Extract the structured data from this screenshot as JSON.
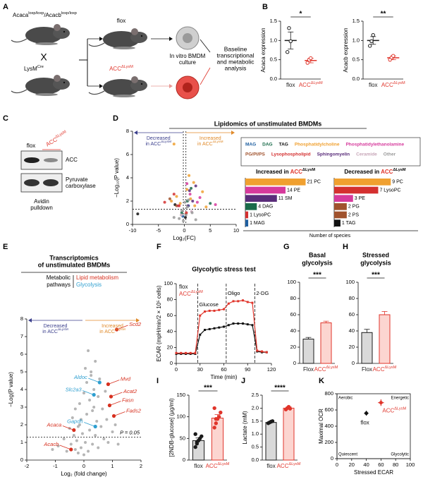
{
  "panel_labels": [
    "A",
    "B",
    "C",
    "D",
    "E",
    "F",
    "G",
    "H",
    "I",
    "J",
    "K"
  ],
  "diagram": {
    "genotype_top": [
      {
        "text": "Acaca",
        "sup": "loxp/loxp"
      },
      {
        "text": "/Acacb",
        "sup": "loxp/loxp"
      }
    ],
    "cross": "X",
    "genotype_bottom": {
      "text": "LysM",
      "sup": "Cre"
    },
    "flox": "flox",
    "knockout": {
      "text": "ACC",
      "sup": "ΔLysM"
    },
    "culture": [
      "In vitro BMDM",
      "culture"
    ],
    "analysis": [
      "Baseline",
      "transcriptional",
      "and metabolic",
      "analysis"
    ]
  },
  "blot": {
    "lanes": [
      "flox",
      {
        "text": "ACC",
        "sup": "ΔLysM"
      }
    ],
    "bands": [
      "ACC",
      [
        "Pyruvate",
        "carboxylase"
      ]
    ],
    "footer": [
      "Avidin",
      "pulldown"
    ]
  },
  "chart_data": [
    {
      "type": "dotbar",
      "y_label": "Acaca expression",
      "categories": [
        "flox",
        {
          "text": "ACC",
          "sup": "ΔLysM"
        }
      ],
      "colors": [
        "#1a1a1a",
        "#e0352b"
      ],
      "values": [
        1.0,
        0.48
      ],
      "errors": [
        0.22,
        0.06
      ],
      "points": [
        [
          0.7,
          1.32,
          0.98
        ],
        [
          0.42,
          0.5,
          0.54
        ]
      ],
      "ylim": [
        0,
        1.5
      ],
      "yticks": [
        {
          "value": 0,
          "label": "0.0"
        },
        {
          "value": 0.5,
          "label": "0.5"
        },
        {
          "value": 1,
          "label": "1.0"
        },
        {
          "value": 1.5,
          "label": "1.5"
        }
      ],
      "significance": "*"
    },
    {
      "type": "dotbar",
      "y_label": "Acacb expression",
      "categories": [
        "flox",
        {
          "text": "ACC",
          "sup": "ΔLysM"
        }
      ],
      "colors": [
        "#1a1a1a",
        "#e0352b"
      ],
      "values": [
        1.0,
        0.55
      ],
      "errors": [
        0.1,
        0.05
      ],
      "points": [
        [
          0.86,
          0.98,
          1.14
        ],
        [
          0.5,
          0.56,
          0.6
        ]
      ],
      "ylim": [
        0,
        1.5
      ],
      "yticks": [
        {
          "value": 0,
          "label": "0.0"
        },
        {
          "value": 0.5,
          "label": "0.5"
        },
        {
          "value": 1,
          "label": "1.0"
        },
        {
          "value": 1.5,
          "label": "1.5"
        }
      ],
      "significance": "**"
    },
    {
      "type": "scatter",
      "title": "Lipidomics of unstimulated BMDMs",
      "x_label": "Log₂(FC)",
      "y_label": "−Log₁₀(P value)",
      "decreased": [
        "Decreased",
        {
          "text": "in ACC",
          "sup": "ΔLysM"
        }
      ],
      "increased": [
        "Increased",
        {
          "text": "in ACC",
          "sup": "ΔLysM"
        }
      ],
      "xlim": [
        -10,
        10
      ],
      "xticks": [
        -10,
        -5,
        0,
        5,
        10
      ],
      "ylim": [
        0,
        8
      ],
      "yticks": [
        0,
        2,
        4,
        6,
        8
      ],
      "hline": 1.3,
      "vlines": [
        -0.2,
        0.3
      ],
      "legend": true,
      "series": [
        {
          "name": "MAG",
          "color": "#1f5fa0",
          "x": [
            0.8,
            -0.3
          ],
          "y": [
            1.6,
            0.7
          ]
        },
        {
          "name": "DAG",
          "color": "#1a6b4a",
          "x": [
            1.3,
            0.6,
            -0.5,
            5.0
          ],
          "y": [
            3.1,
            2.0,
            1.0,
            1.8
          ]
        },
        {
          "name": "TAG",
          "color": "#111111",
          "x": [
            -9,
            -1.8,
            0.2
          ],
          "y": [
            0.9,
            1.7,
            0.6
          ]
        },
        {
          "name": "Phosphatidylcholine",
          "color": "#f0a030",
          "x": [
            -1.5,
            -0.8,
            0.5,
            1.2,
            2.0,
            3.5,
            -2.5,
            0.9,
            1.8,
            4.2,
            -2.0
          ],
          "y": [
            2.4,
            1.8,
            3.0,
            2.2,
            1.6,
            2.8,
            2.0,
            4.2,
            3.6,
            1.5,
            6.9
          ]
        },
        {
          "name": "Phosphatidylethanolamine",
          "color": "#d63a9c",
          "x": [
            0.5,
            1.1,
            2.5,
            -1.2,
            3.0,
            6.0
          ],
          "y": [
            3.5,
            2.6,
            1.9,
            1.6,
            2.3,
            1.7
          ]
        },
        {
          "name": "PG/PI/PS",
          "color": "#a0522d",
          "x": [
            -2.8,
            -1.5,
            0.3
          ],
          "y": [
            2.2,
            1.6,
            0.9
          ]
        },
        {
          "name": "Lysophospholipid",
          "color": "#d43030",
          "x": [
            -3.8,
            -2.0,
            -1.0,
            0.4
          ],
          "y": [
            1.9,
            2.6,
            1.6,
            1.0
          ]
        },
        {
          "name": "Sphingomyelin",
          "color": "#5a2d7a",
          "x": [
            1.0,
            1.6,
            2.2,
            0.7
          ],
          "y": [
            2.9,
            2.0,
            3.3,
            1.6
          ]
        },
        {
          "name": "Ceramide",
          "color": "#c7a6b8",
          "x": [
            -0.6,
            1.4
          ],
          "y": [
            0.8,
            1.1
          ]
        },
        {
          "name": "Other",
          "color": "#9a9a9a",
          "x": [
            -1,
            -0.5,
            0.3,
            0.8,
            1.5,
            -2,
            0.1,
            2.2,
            -0.2,
            0.6
          ],
          "y": [
            0.5,
            1.2,
            0.8,
            2.1,
            1.0,
            0.6,
            1.9,
            0.4,
            0.3,
            1.5
          ]
        }
      ]
    },
    {
      "type": "hbar",
      "title": {
        "text": "Increased in ",
        "accent": "ACC",
        "sup": "ΔLysM"
      },
      "values": [
        21,
        14,
        11,
        4,
        1,
        1
      ],
      "value_labels": [
        "21 PC",
        "14 PE",
        "11 SM",
        "4 DAG",
        "1 LysoPC",
        "1 MAG"
      ],
      "colors": [
        "#f0a030",
        "#d63a9c",
        "#5a2d7a",
        "#1a6b4a",
        "#d43030",
        "#1f5fa0"
      ],
      "xlim": [
        0,
        28
      ],
      "x_label": "Number of species"
    },
    {
      "type": "hbar",
      "title": {
        "text": "Decreased in ",
        "accent": "ACC",
        "sup": "ΔLysM"
      },
      "values": [
        9,
        7,
        3,
        2,
        2,
        1
      ],
      "value_labels": [
        "9 PC",
        "7 LysoPC",
        "3 PE",
        "2 PG",
        "2 PS",
        "1 TAG"
      ],
      "colors": [
        "#f0a030",
        "#d43030",
        "#d63a9c",
        "#a0522d",
        "#a0522d",
        "#111111"
      ],
      "xlim": [
        0,
        13
      ]
    },
    {
      "type": "scatter",
      "title_lines": [
        "Transcriptomics",
        "of unstimulated BMDMs"
      ],
      "legend_title": [
        "Metabolic",
        "pathways"
      ],
      "decreased": [
        "Decreased",
        {
          "text": "in ACC",
          "sup": "ΔLysM"
        }
      ],
      "increased": [
        "Increased",
        {
          "text": "in ACC",
          "sup": "ΔLysM"
        }
      ],
      "x_label": "Log₂ (fold change)",
      "y_label": "−Log(P value)",
      "xlim": [
        -2,
        2
      ],
      "xticks": [
        -2,
        -1,
        0,
        1,
        2
      ],
      "ylim": [
        0,
        8
      ],
      "yticks": [
        0,
        1,
        2,
        3,
        4,
        5,
        6,
        7,
        8
      ],
      "hline": 1.3,
      "hline_label": "P = 0.05",
      "series": [
        {
          "color": "#a8a8a8",
          "x": [
            -0.9,
            -0.7,
            -0.6,
            -0.5,
            -0.45,
            -0.4,
            -0.35,
            -0.3,
            -0.3,
            -0.25,
            -0.2,
            -0.2,
            -0.15,
            -0.1,
            -0.1,
            -0.05,
            0,
            0,
            0.05,
            0.1,
            0.1,
            0.15,
            0.2,
            0.2,
            0.25,
            0.3,
            0.3,
            0.35,
            0.4,
            0.4,
            0.45,
            0.5,
            0.5,
            0.55,
            0.6,
            0.65,
            0.7,
            0.75,
            0.8,
            0.85,
            0.9,
            1.0,
            1.1,
            1.2,
            -1.1,
            0.15,
            0.25,
            0.35,
            -0.15,
            0.05
          ],
          "y": [
            0.8,
            1.2,
            0.5,
            1.8,
            0.9,
            2.4,
            1.4,
            0.6,
            2.9,
            1.1,
            0.4,
            1.9,
            3.2,
            0.7,
            2.3,
            1.5,
            0.3,
            3.8,
            1.0,
            2.6,
            4.4,
            0.5,
            1.7,
            3.4,
            5.0,
            0.9,
            2.8,
            4.0,
            1.4,
            5.6,
            2.2,
            0.7,
            3.6,
            4.6,
            1.9,
            2.9,
            1.2,
            3.9,
            2.3,
            1.0,
            3.1,
            1.6,
            2.0,
            0.9,
            0.6,
            6.2,
            4.8,
            3.0,
            2.0,
            5.2
          ]
        },
        {
          "name": "Lipid metabolism",
          "color": "#d7301f",
          "labels": [
            "Scd2",
            "Mvd",
            "Acat2",
            "Fasn",
            "Fads2",
            "Acaca",
            "Acacb"
          ],
          "x": [
            1.15,
            0.85,
            0.95,
            0.9,
            1.05,
            -0.35,
            -0.45
          ],
          "y": [
            7.4,
            4.3,
            3.6,
            3.1,
            2.5,
            1.7,
            0.6
          ]
        },
        {
          "name": "Glycolysis",
          "color": "#2e9fd0",
          "labels": [
            "Aldoc",
            "Slc2a3",
            "Gapdh"
          ],
          "x": [
            0.55,
            0.35,
            0.4
          ],
          "y": [
            4.4,
            3.7,
            1.9
          ]
        }
      ]
    },
    {
      "type": "line",
      "title": "Glycolytic stress test",
      "x_label": "Time (min)",
      "y_label": "ECAR (mpH/min/2 × 10⁵ cells)",
      "x": [
        0,
        6,
        12,
        18,
        24,
        30,
        36,
        42,
        48,
        54,
        60,
        66,
        72,
        78,
        84,
        90,
        96,
        102,
        108,
        114
      ],
      "xlim": [
        0,
        120
      ],
      "xticks": [
        0,
        30,
        60,
        90,
        120
      ],
      "ylim": [
        0,
        100
      ],
      "yticks": [
        0,
        20,
        40,
        60,
        80,
        100
      ],
      "vlines": [
        27,
        63,
        99
      ],
      "vline_labels": [
        "Glucose",
        "Oligo",
        "2-DG"
      ],
      "series": [
        {
          "name": "flox",
          "color": "#111111",
          "values": [
            12,
            12,
            12,
            12,
            12,
            36,
            42,
            43,
            44,
            45,
            46,
            48,
            50,
            50,
            50,
            49,
            48,
            15,
            14,
            14
          ]
        },
        {
          "name": {
            "text": "ACC",
            "sup": "ΔLysM"
          },
          "color": "#e0352b",
          "values": [
            13,
            13,
            13,
            13,
            13,
            60,
            65,
            66,
            66,
            67,
            68,
            75,
            78,
            78,
            79,
            77,
            76,
            16,
            15,
            14
          ]
        }
      ]
    },
    {
      "type": "bar",
      "title_lines": [
        "Basal",
        "glycolysis"
      ],
      "categories": [
        "Flox",
        {
          "text": "ACC",
          "sup": "ΔLysM"
        }
      ],
      "colors": [
        "#1a1a1a",
        "#e0352b"
      ],
      "fills": [
        "#d9d9d9",
        "#fcd5d0"
      ],
      "values": [
        30,
        50
      ],
      "errors": [
        2,
        2
      ],
      "ylim": [
        0,
        100
      ],
      "yticks": [
        0,
        20,
        40,
        60,
        80,
        100
      ],
      "significance": "***"
    },
    {
      "type": "bar",
      "title_lines": [
        "Stressed",
        "glycolysis"
      ],
      "categories": [
        "Flox",
        {
          "text": "ACC",
          "sup": "ΔLysM"
        }
      ],
      "colors": [
        "#1a1a1a",
        "#e0352b"
      ],
      "fills": [
        "#d9d9d9",
        "#fcd5d0"
      ],
      "values": [
        38,
        60
      ],
      "errors": [
        4,
        4
      ],
      "ylim": [
        0,
        100
      ],
      "yticks": [
        0,
        20,
        40,
        60,
        80,
        100
      ],
      "significance": "***"
    },
    {
      "type": "bar",
      "y_label": "[2NDB-glucose] (μg/ml)",
      "categories": [
        "flox",
        {
          "text": "ACC",
          "sup": "ΔLysM"
        }
      ],
      "colors": [
        "#1a1a1a",
        "#e0352b"
      ],
      "fills": [
        "#d9d9d9",
        "#fcd5d0"
      ],
      "values": [
        45,
        97
      ],
      "errors": [
        6,
        8
      ],
      "points": [
        [
          30,
          38,
          45,
          50,
          55,
          60,
          42
        ],
        [
          75,
          85,
          95,
          100,
          110,
          120,
          95
        ]
      ],
      "ylim": [
        0,
        150
      ],
      "yticks": [
        0,
        50,
        100,
        150
      ],
      "significance": "***"
    },
    {
      "type": "bar",
      "y_label": "Lactate (mM)",
      "categories": [
        "flox",
        {
          "text": "ACC",
          "sup": "ΔLysM"
        }
      ],
      "colors": [
        "#1a1a1a",
        "#e0352b"
      ],
      "fills": [
        "#d9d9d9",
        "#fcd5d0"
      ],
      "values": [
        1.45,
        2.0
      ],
      "errors": [
        0.03,
        0.05
      ],
      "points": [
        [
          1.42,
          1.45,
          1.48,
          1.5
        ],
        [
          1.95,
          2.0,
          2.05,
          1.98
        ]
      ],
      "ylim": [
        0,
        2.5
      ],
      "yticks": [
        {
          "value": 0,
          "label": "0.0"
        },
        {
          "value": 0.5,
          "label": "0.5"
        },
        {
          "value": 1,
          "label": "1.0"
        },
        {
          "value": 1.5,
          "label": "1.5"
        },
        {
          "value": 2,
          "label": "2.0"
        },
        {
          "value": 2.5,
          "label": "2.5"
        }
      ],
      "significance": "****"
    },
    {
      "type": "quadrant",
      "x_label": "Stressed ECAR",
      "y_label": "Maximal OCR",
      "xlim": [
        0,
        100
      ],
      "xticks": [
        0,
        20,
        40,
        60,
        80,
        100
      ],
      "ylim": [
        0,
        800
      ],
      "yticks": [
        0,
        200,
        400,
        600,
        800
      ],
      "quadrant_labels": [
        "Aerobic",
        "Energetic",
        "Quiescent",
        "Glycolytic"
      ],
      "series": [
        {
          "name": "flox",
          "color": "#111111",
          "x": [
            40
          ],
          "y": [
            560
          ],
          "x_err": [
            3
          ],
          "y_err": [
            30
          ]
        },
        {
          "name": {
            "text": "ACC",
            "sup": "ΔLysM"
          },
          "color": "#e0352b",
          "x": [
            60
          ],
          "y": [
            690
          ],
          "x_err": [
            4
          ],
          "y_err": [
            40
          ]
        }
      ]
    }
  ]
}
